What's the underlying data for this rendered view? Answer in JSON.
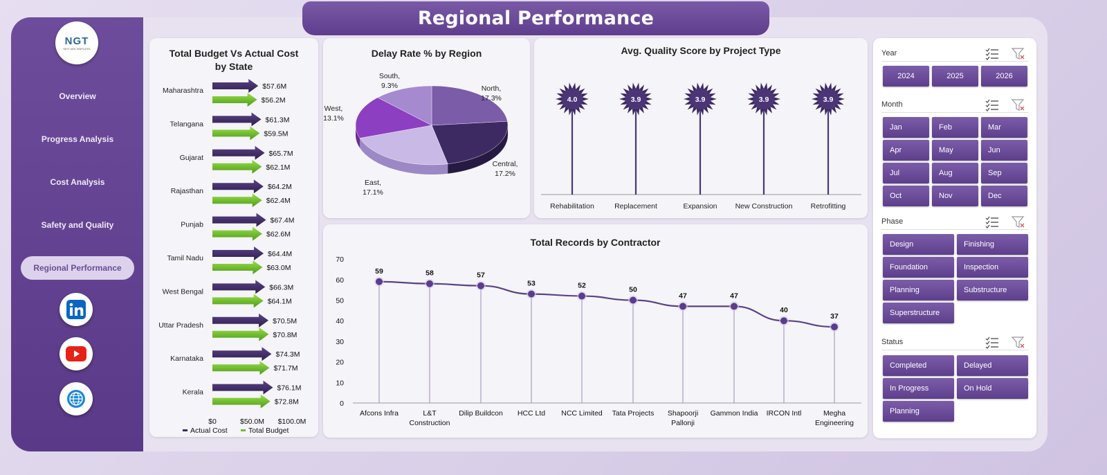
{
  "header": {
    "title": "Regional Performance"
  },
  "logo": {
    "text": "NGT",
    "tagline": "NEXT GEN TEMPLATES"
  },
  "sidebar": {
    "items": [
      {
        "label": "Overview",
        "active": false
      },
      {
        "label": "Progress Analysis",
        "active": false
      },
      {
        "label": "Cost Analysis",
        "active": false
      },
      {
        "label": "Safety and Quality",
        "active": false
      },
      {
        "label": "Regional Performance",
        "active": true
      }
    ],
    "social": [
      "linkedin-icon",
      "youtube-icon",
      "globe-icon"
    ]
  },
  "colors": {
    "accent": "#5e3d8d",
    "actual": "#3d2a63",
    "budget": "#6fbf2a",
    "panel": "#f5f4f8"
  },
  "charts": {
    "budget": {
      "title_line1": "Total Budget Vs Actual Cost",
      "title_line2": "by State",
      "legend_actual": "Actual Cost",
      "legend_budget": "Total Budget"
    },
    "delay": {
      "title": "Delay Rate % by Region"
    },
    "quality": {
      "title": "Avg. Quality Score by Project Type"
    },
    "contractor": {
      "title": "Total Records by Contractor"
    }
  },
  "chart_data": [
    {
      "type": "bar",
      "orientation": "horizontal",
      "title": "Total Budget Vs Actual Cost by State",
      "categories": [
        "Maharashtra",
        "Telangana",
        "Gujarat",
        "Rajasthan",
        "Punjab",
        "Tamil Nadu",
        "West Bengal",
        "Uttar Pradesh",
        "Karnataka",
        "Kerala"
      ],
      "series": [
        {
          "name": "Actual Cost",
          "values": [
            57.6,
            61.3,
            65.7,
            64.2,
            67.4,
            64.4,
            66.3,
            70.5,
            74.3,
            76.1
          ],
          "labels": [
            "$57.6M",
            "$61.3M",
            "$65.7M",
            "$64.2M",
            "$67.4M",
            "$64.4M",
            "$66.3M",
            "$70.5M",
            "$74.3M",
            "$76.1M"
          ]
        },
        {
          "name": "Total Budget",
          "values": [
            56.2,
            59.5,
            62.1,
            62.4,
            62.6,
            63.0,
            64.1,
            70.8,
            71.7,
            72.8
          ],
          "labels": [
            "$56.2M",
            "$59.5M",
            "$62.1M",
            "$62.4M",
            "$62.6M",
            "$63.0M",
            "$64.1M",
            "$70.8M",
            "$71.7M",
            "$72.8M"
          ]
        }
      ],
      "xticks": [
        "$0",
        "$50.0M",
        "$100.0M"
      ],
      "xlim": [
        0,
        100
      ],
      "legend": "bottom"
    },
    {
      "type": "pie",
      "title": "Delay Rate % by Region",
      "categories": [
        "North",
        "Central",
        "East",
        "West",
        "South"
      ],
      "values": [
        17.3,
        17.2,
        17.1,
        13.1,
        9.3
      ],
      "labels": [
        "North,|17.3%",
        "Central,|17.2%",
        "East,|17.1%",
        "West,|13.1%",
        "South,|9.3%"
      ],
      "colors": [
        "#7a5ca8",
        "#3d2a63",
        "#c9b9e6",
        "#8c3fc0",
        "#a58ad0"
      ]
    },
    {
      "type": "lollipop",
      "title": "Avg. Quality Score by Project Type",
      "categories": [
        "Rehabilitation",
        "Replacement",
        "Expansion",
        "New Construction",
        "Retrofitting"
      ],
      "values": [
        4.0,
        3.9,
        3.9,
        3.9,
        3.9
      ],
      "labels": [
        "4.0",
        "3.9",
        "3.9",
        "3.9",
        "3.9"
      ]
    },
    {
      "type": "line",
      "title": "Total Records by Contractor",
      "categories": [
        "Afcons Infra",
        "L&T|Construction",
        "Dilip Buildcon",
        "HCC Ltd",
        "NCC Limited",
        "Tata Projects",
        "Shapoorji|Pallonji",
        "Gammon India",
        "IRCON Intl",
        "Megha|Engineering"
      ],
      "values": [
        59,
        58,
        57,
        53,
        52,
        50,
        47,
        47,
        40,
        37
      ],
      "yticks": [
        "0",
        "10",
        "20",
        "30",
        "40",
        "50",
        "60",
        "70"
      ],
      "ylim": [
        0,
        70
      ]
    }
  ],
  "slicers": {
    "year": {
      "title": "Year",
      "options": [
        "2024",
        "2025",
        "2026"
      ]
    },
    "month": {
      "title": "Month",
      "options": [
        "Jan",
        "Feb",
        "Mar",
        "Apr",
        "May",
        "Jun",
        "Jul",
        "Aug",
        "Sep",
        "Oct",
        "Nov",
        "Dec"
      ]
    },
    "phase": {
      "title": "Phase",
      "options": [
        "Design",
        "Finishing",
        "Foundation",
        "Inspection",
        "Planning",
        "Substructure",
        "Superstructure"
      ]
    },
    "status": {
      "title": "Status",
      "options": [
        "Completed",
        "Delayed",
        "In Progress",
        "On Hold",
        "Planning"
      ]
    }
  }
}
